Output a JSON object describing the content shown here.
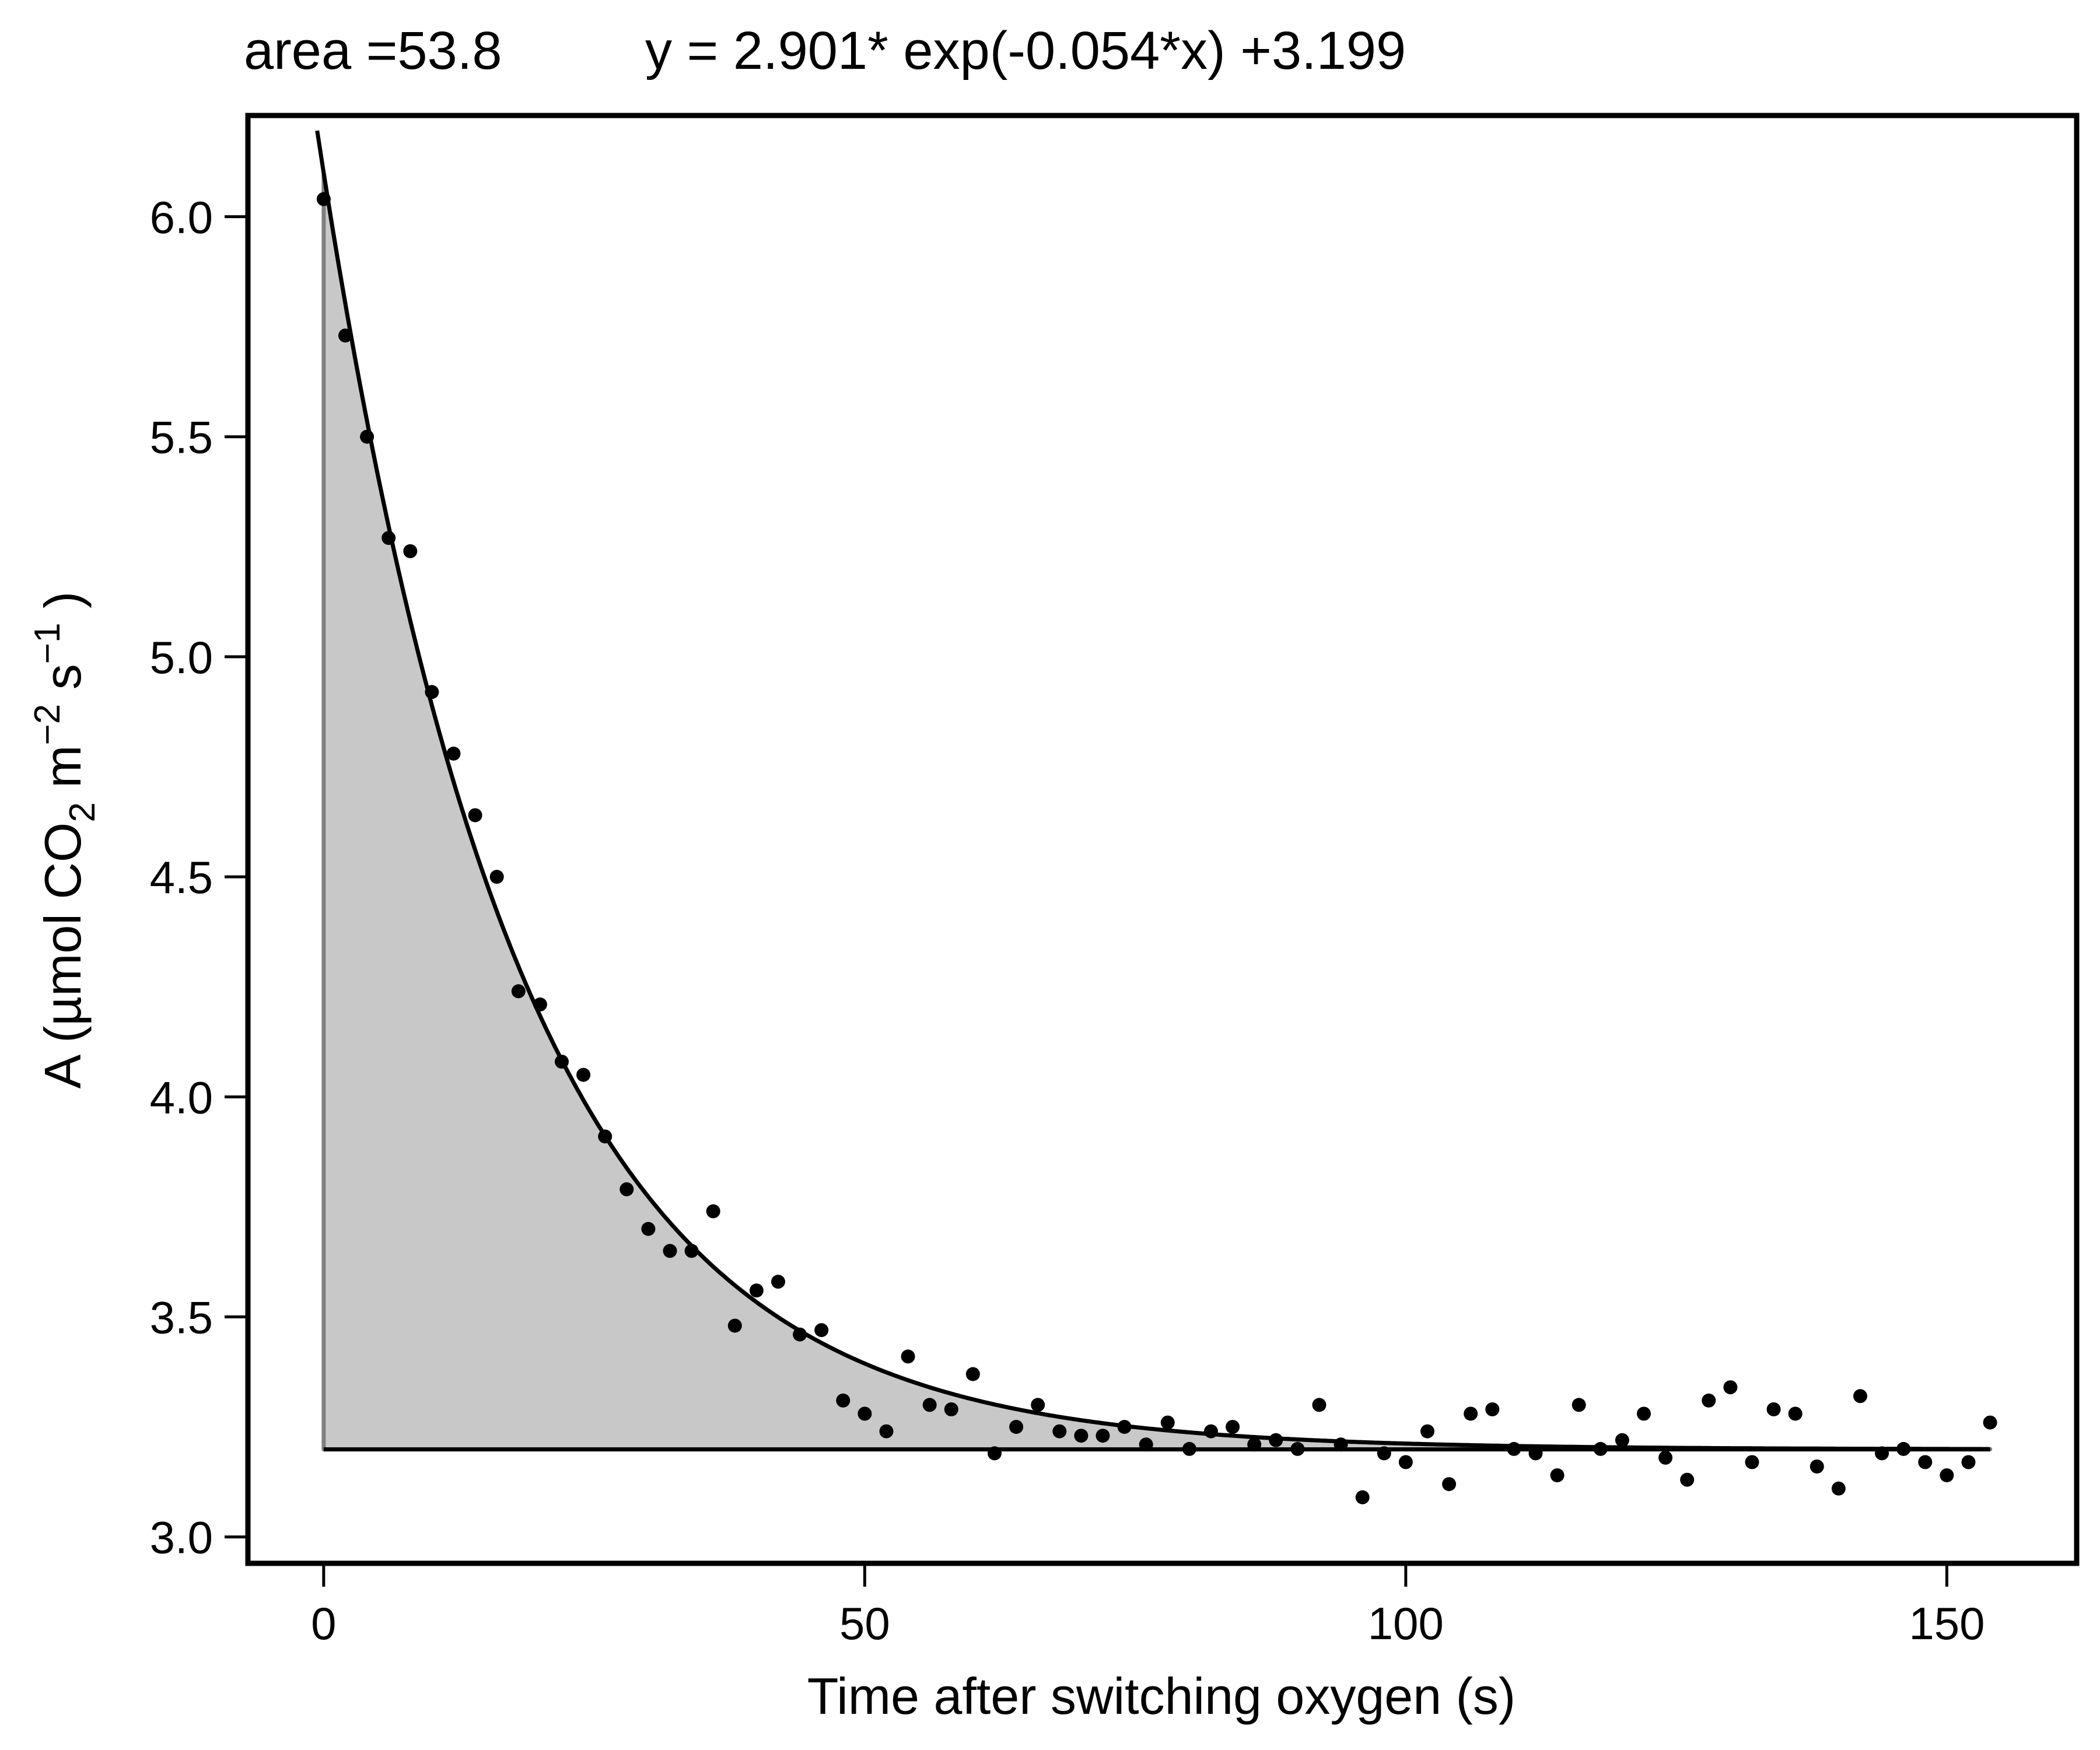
{
  "header": {
    "area_label": "area =53.8",
    "equation_label": "y = 2.901* exp(-0.054*x) +3.199"
  },
  "axes": {
    "xlabel": "Time after switching oxygen (s)",
    "ylabel_parts": [
      "A (µmol CO",
      "2",
      " m",
      "−2",
      " s",
      "−1",
      " )"
    ],
    "x_ticks": [
      "0",
      "50",
      "100",
      "150"
    ],
    "y_ticks": [
      "3.0",
      "3.5",
      "4.0",
      "4.5",
      "5.0",
      "5.5",
      "6.0"
    ]
  },
  "colors": {
    "fill": "#c8c8c8",
    "fill_outline": "#7f7f7f",
    "line": "#000000",
    "points": "#000000"
  },
  "chart_data": {
    "type": "scatter",
    "title": "area =53.8     y = 2.901* exp(-0.054*x) +3.199",
    "xlabel": "Time after switching oxygen (s)",
    "ylabel": "A (µmol CO2 m−2 s−1 )",
    "xlim": [
      -7,
      162
    ],
    "ylim": [
      2.94,
      6.23
    ],
    "x_ticks": [
      0,
      50,
      100,
      150
    ],
    "y_ticks": [
      3.0,
      3.5,
      4.0,
      4.5,
      5.0,
      5.5,
      6.0
    ],
    "grid": false,
    "legend": "none",
    "fit": {
      "model": "exponential decay",
      "equation": "y = 2.901* exp(-0.054*x) +3.199",
      "a": 2.901,
      "k": -0.054,
      "c": 3.199,
      "x_range": [
        0,
        154
      ],
      "baseline": 3.199,
      "area": 53.8
    },
    "series": [
      {
        "x": [
          0,
          2,
          4,
          6,
          8,
          10,
          12,
          14,
          16,
          18,
          20,
          22,
          24,
          26,
          28,
          30,
          32,
          34,
          36,
          38,
          40,
          42,
          44,
          46,
          48,
          50,
          52,
          54,
          56,
          58,
          60,
          62,
          64,
          66,
          68,
          70,
          72,
          74,
          76,
          78,
          80,
          82,
          84,
          86,
          88,
          90,
          92,
          94,
          96,
          98,
          100,
          102,
          104,
          106,
          108,
          110,
          112,
          114,
          116,
          118,
          120,
          122,
          124,
          126,
          128,
          130,
          132,
          134,
          136,
          138,
          140,
          142,
          144,
          146,
          148,
          150,
          152,
          154
        ],
        "values": [
          6.04,
          5.73,
          5.5,
          5.27,
          5.24,
          4.92,
          4.78,
          4.64,
          4.5,
          4.24,
          4.21,
          4.08,
          4.05,
          3.91,
          3.79,
          3.7,
          3.65,
          3.65,
          3.74,
          3.48,
          3.56,
          3.58,
          3.46,
          3.47,
          3.31,
          3.28,
          3.24,
          3.41,
          3.3,
          3.29,
          3.37,
          3.19,
          3.25,
          3.3,
          3.24,
          3.23,
          3.23,
          3.25,
          3.21,
          3.26,
          3.2,
          3.24,
          3.25,
          3.21,
          3.22,
          3.2,
          3.3,
          3.21,
          3.09,
          3.19,
          3.17,
          3.24,
          3.12,
          3.28,
          3.29,
          3.2,
          3.19,
          3.14,
          3.3,
          3.2,
          3.22,
          3.28,
          3.18,
          3.13,
          3.31,
          3.34,
          3.17,
          3.29,
          3.28,
          3.16,
          3.11,
          3.32,
          3.19,
          3.2,
          3.17,
          3.14,
          3.17,
          3.26
        ]
      }
    ]
  }
}
